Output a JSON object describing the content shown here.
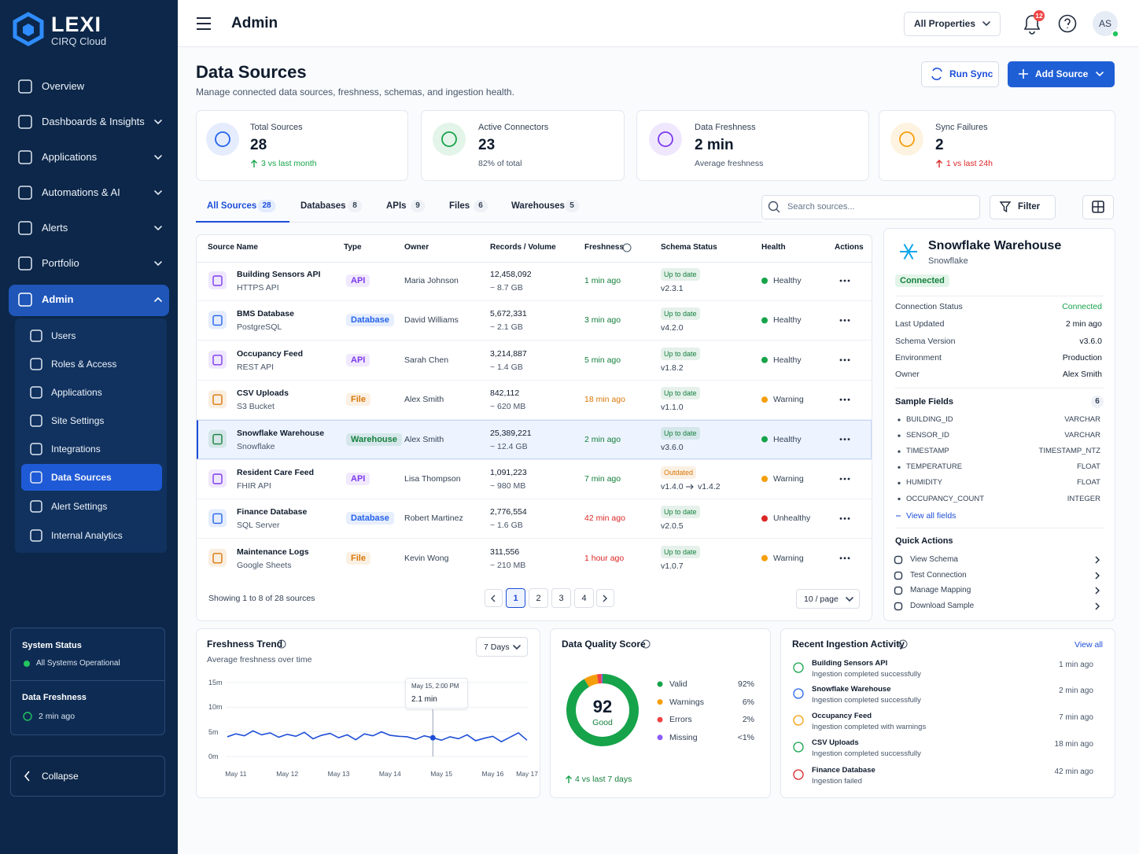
{
  "sidebar": {
    "brand": "LEXI",
    "brand_sub": "CIRQ Cloud",
    "nav": [
      "Overview",
      "Dashboards & Insights",
      "Applications",
      "Automations & AI",
      "Alerts",
      "Portfolio"
    ],
    "admin": "Admin",
    "admin_items": [
      "Users",
      "Roles & Access",
      "Applications",
      "Site Settings",
      "Integrations",
      "Data Sources",
      "Alert Settings",
      "Internal Analytics"
    ],
    "system_title": "System Status",
    "system_status": "All Systems Operational",
    "freshness_title": "Data Freshness",
    "freshness": "2 min ago",
    "collapse": "Collapse"
  },
  "topbar": {
    "title": "Admin",
    "property": "All Properties",
    "notifications": "12",
    "avatar": "AS"
  },
  "header": {
    "title": "Data Sources",
    "subtitle": "Manage connected data sources, freshness, schemas, and ingestion health.",
    "run_sync": "Run Sync",
    "add_source": "Add Source"
  },
  "stats": [
    {
      "label": "Total Sources",
      "value": "28",
      "note": "3 vs last month",
      "color": "#2563eb",
      "note_color": "#16a34a"
    },
    {
      "label": "Active Connectors",
      "value": "23",
      "note": "82% of total",
      "color": "#16a34a",
      "note_color": "#475569"
    },
    {
      "label": "Data Freshness",
      "value": "2 min",
      "note": "Average freshness",
      "color": "#7c3aed",
      "note_color": "#475569"
    },
    {
      "label": "Sync Failures",
      "value": "2",
      "note": "1 vs last 24h",
      "color": "#f59e0b",
      "note_color": "#dc2626"
    }
  ],
  "tabs": [
    {
      "label": "All Sources",
      "count": "28"
    },
    {
      "label": "Databases",
      "count": "8"
    },
    {
      "label": "APIs",
      "count": "9"
    },
    {
      "label": "Files",
      "count": "6"
    },
    {
      "label": "Warehouses",
      "count": "5"
    }
  ],
  "search": "Search sources...",
  "filter": "Filter",
  "table": {
    "columns": [
      "Source Name",
      "Type",
      "Owner",
      "Records / Volume",
      "Freshness",
      "Schema Status",
      "Health",
      "Actions"
    ],
    "rows": [
      {
        "name": "Building Sensors API",
        "sub": "HTTPS API",
        "type": "API",
        "owner": "Maria Johnson",
        "records": "12,458,092",
        "volume": "~ 8.7 GB",
        "freshness": "1 min ago",
        "schema": "Up to date",
        "version": "v2.3.1",
        "health": "Healthy",
        "color": "#7c3aed",
        "fresh_color": "#15803d",
        "schema_color": "#15803d",
        "health_color": "#16a34a"
      },
      {
        "name": "BMS Database",
        "sub": "PostgreSQL",
        "type": "Database",
        "owner": "David Williams",
        "records": "5,672,331",
        "volume": "~ 2.1 GB",
        "freshness": "3 min ago",
        "schema": "Up to date",
        "version": "v4.2.0",
        "health": "Healthy",
        "color": "#2563eb",
        "fresh_color": "#15803d",
        "schema_color": "#15803d",
        "health_color": "#16a34a"
      },
      {
        "name": "Occupancy Feed",
        "sub": "REST API",
        "type": "API",
        "owner": "Sarah Chen",
        "records": "3,214,887",
        "volume": "~ 1.4 GB",
        "freshness": "5 min ago",
        "schema": "Up to date",
        "version": "v1.8.2",
        "health": "Healthy",
        "color": "#7c3aed",
        "fresh_color": "#15803d",
        "schema_color": "#15803d",
        "health_color": "#16a34a"
      },
      {
        "name": "CSV Uploads",
        "sub": "S3 Bucket",
        "type": "File",
        "owner": "Alex Smith",
        "records": "842,112",
        "volume": "~ 620 MB",
        "freshness": "18 min ago",
        "schema": "Up to date",
        "version": "v1.1.0",
        "health": "Warning",
        "color": "#d97706",
        "fresh_color": "#d97706",
        "schema_color": "#15803d",
        "health_color": "#f59e0b"
      },
      {
        "name": "Snowflake Warehouse",
        "sub": "Snowflake",
        "type": "Warehouse",
        "owner": "Alex Smith",
        "records": "25,389,221",
        "volume": "~ 12.4 GB",
        "freshness": "2 min ago",
        "schema": "Up to date",
        "version": "v3.6.0",
        "health": "Healthy",
        "color": "#15803d",
        "fresh_color": "#15803d",
        "schema_color": "#15803d",
        "health_color": "#16a34a"
      },
      {
        "name": "Resident Care Feed",
        "sub": "FHIR API",
        "type": "API",
        "owner": "Lisa Thompson",
        "records": "1,091,223",
        "volume": "~ 980 MB",
        "freshness": "7 min ago",
        "schema": "Outdated",
        "version": "v1.4.0",
        "new_version": "v1.4.2",
        "health": "Warning",
        "color": "#7c3aed",
        "fresh_color": "#15803d",
        "schema_color": "#d97706",
        "health_color": "#f59e0b"
      },
      {
        "name": "Finance Database",
        "sub": "SQL Server",
        "type": "Database",
        "owner": "Robert Martinez",
        "records": "2,776,554",
        "volume": "~ 1.6 GB",
        "freshness": "42 min ago",
        "schema": "Up to date",
        "version": "v2.0.5",
        "health": "Unhealthy",
        "color": "#2563eb",
        "fresh_color": "#dc2626",
        "schema_color": "#15803d",
        "health_color": "#dc2626"
      },
      {
        "name": "Maintenance Logs",
        "sub": "Google Sheets",
        "type": "File",
        "owner": "Kevin Wong",
        "records": "311,556",
        "volume": "~ 210 MB",
        "freshness": "1 hour ago",
        "schema": "Up to date",
        "version": "v1.0.7",
        "health": "Warning",
        "color": "#d97706",
        "fresh_color": "#dc2626",
        "schema_color": "#15803d",
        "health_color": "#f59e0b"
      }
    ]
  },
  "pagination": {
    "showing": "Showing 1 to 8 of 28 sources",
    "pages": [
      "1",
      "2",
      "3",
      "4"
    ],
    "per_page": "10 / page"
  },
  "detail": {
    "title": "Snowflake Warehouse",
    "sub": "Snowflake",
    "badge": "Connected",
    "props": [
      [
        "Connection Status",
        "Connected"
      ],
      [
        "Last Updated",
        "2 min ago"
      ],
      [
        "Schema Version",
        "v3.6.0"
      ],
      [
        "Environment",
        "Production"
      ],
      [
        "Owner",
        "Alex Smith"
      ]
    ],
    "fields_title": "Sample Fields",
    "fields_count": "6",
    "fields": [
      [
        "BUILDING_ID",
        "VARCHAR"
      ],
      [
        "SENSOR_ID",
        "VARCHAR"
      ],
      [
        "TIMESTAMP",
        "TIMESTAMP_NTZ"
      ],
      [
        "TEMPERATURE",
        "FLOAT"
      ],
      [
        "HUMIDITY",
        "FLOAT"
      ],
      [
        "OCCUPANCY_COUNT",
        "INTEGER"
      ]
    ],
    "view_all": "View all fields",
    "actions_title": "Quick Actions",
    "actions": [
      "View Schema",
      "Test Connection",
      "Manage Mapping",
      "Download Sample"
    ]
  },
  "chart_data": [
    {
      "type": "line",
      "title": "Freshness Trend",
      "subtitle": "Average freshness over time",
      "range": "7 Days",
      "categories": [
        null,
        "May 11",
        null,
        null,
        null,
        null,
        null,
        "May 12",
        null,
        null,
        null,
        null,
        null,
        "May 13",
        null,
        null,
        null,
        null,
        null,
        "May 14",
        null,
        null,
        null,
        null,
        null,
        "May 15",
        null,
        null,
        null,
        null,
        null,
        "May 16",
        null,
        null,
        null,
        "May 17"
      ],
      "values": [
        4.0,
        4.6,
        4.2,
        5.2,
        4.4,
        4.8,
        3.9,
        4.5,
        4.1,
        4.9,
        3.6,
        4.3,
        4.7,
        3.8,
        4.4,
        3.4,
        4.6,
        4.2,
        5.0,
        4.3,
        4.1,
        4.0,
        3.5,
        4.2,
        3.8,
        3.3,
        4.0,
        3.6,
        4.4,
        3.2,
        3.7,
        4.1,
        3.0,
        3.9,
        4.8,
        3.3
      ],
      "color": "#1d4ed8",
      "ylim": [
        0,
        15
      ],
      "yticks": [
        {
          "value": 0,
          "label": "0m"
        },
        {
          "value": 5,
          "label": "5m"
        },
        {
          "value": 10,
          "label": "10m"
        },
        {
          "value": 15,
          "label": "15m"
        }
      ],
      "annotation": {
        "title": "May 15, 2:00 PM",
        "text": "2.1 min"
      }
    },
    {
      "type": "donut",
      "title": "Data Quality Score",
      "score": "92",
      "score_label": "Good",
      "categories": [
        "Valid",
        "Warnings",
        "Errors",
        "Missing"
      ],
      "values": [
        92,
        6,
        2,
        0.5
      ],
      "value_labels": [
        "92%",
        "6%",
        "2%",
        "<1%"
      ],
      "colors": [
        "#16a34a",
        "#f59e0b",
        "#ef4444",
        "#8b5cf6"
      ],
      "footer": "4 vs last 7 days"
    }
  ],
  "activity": {
    "title": "Recent Ingestion Activity",
    "view_all": "View all",
    "items": [
      {
        "name": "Building Sensors API",
        "desc": "Ingestion completed successfully",
        "time": "1 min ago",
        "color": "#16a34a"
      },
      {
        "name": "Snowflake Warehouse",
        "desc": "Ingestion completed successfully",
        "time": "2 min ago",
        "color": "#2563eb"
      },
      {
        "name": "Occupancy Feed",
        "desc": "Ingestion completed with warnings",
        "time": "7 min ago",
        "color": "#f59e0b"
      },
      {
        "name": "CSV Uploads",
        "desc": "Ingestion completed successfully",
        "time": "18 min ago",
        "color": "#16a34a"
      },
      {
        "name": "Finance Database",
        "desc": "Ingestion failed",
        "time": "42 min ago",
        "color": "#dc2626"
      }
    ]
  }
}
